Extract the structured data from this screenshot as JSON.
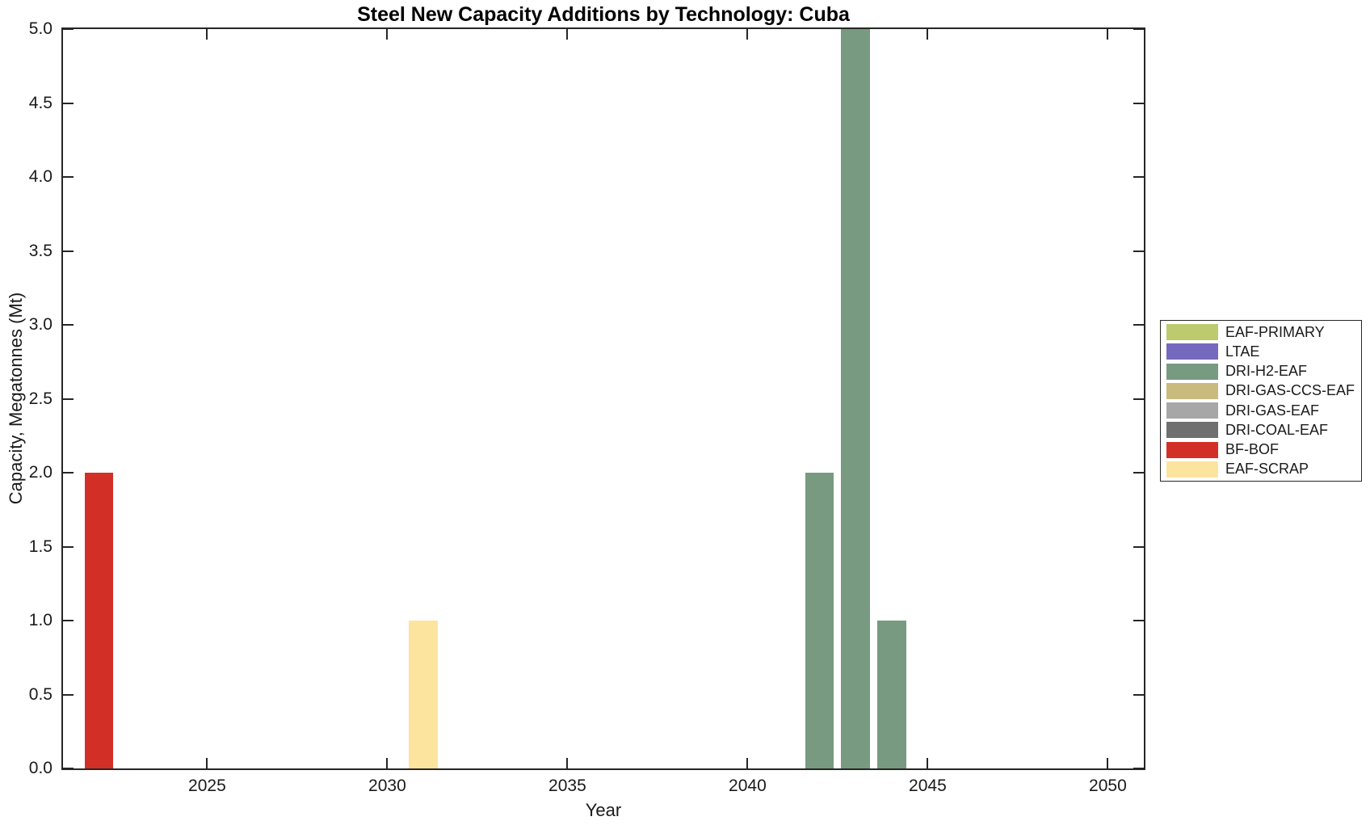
{
  "chart_data": {
    "type": "bar",
    "title": "Steel New Capacity Additions by Technology: Cuba",
    "xlabel": "Year",
    "ylabel": "Capacity, Megatonnes (Mt)",
    "xlim": [
      2021,
      2051
    ],
    "ylim": [
      0,
      5
    ],
    "xticks": [
      2025,
      2030,
      2035,
      2040,
      2045,
      2050
    ],
    "yticks": [
      0.0,
      0.5,
      1.0,
      1.5,
      2.0,
      2.5,
      3.0,
      3.5,
      4.0,
      4.5,
      5.0
    ],
    "grid": false,
    "bar_width_years": 0.8,
    "legend_position": "right-outside",
    "frame_color": "#262626",
    "series": [
      {
        "name": "EAF-PRIMARY",
        "color": "#bdca6e",
        "points": []
      },
      {
        "name": "LTAE",
        "color": "#7569be",
        "points": []
      },
      {
        "name": "DRI-H2-EAF",
        "color": "#779a80",
        "points": [
          {
            "x": 2042,
            "y": 2.0
          },
          {
            "x": 2043,
            "y": 5.0
          },
          {
            "x": 2044,
            "y": 1.0
          }
        ]
      },
      {
        "name": "DRI-GAS-CCS-EAF",
        "color": "#c8bb7d",
        "points": []
      },
      {
        "name": "DRI-GAS-EAF",
        "color": "#a7a7a7",
        "points": []
      },
      {
        "name": "DRI-COAL-EAF",
        "color": "#6f6f6f",
        "points": []
      },
      {
        "name": "BF-BOF",
        "color": "#d23027",
        "points": [
          {
            "x": 2022,
            "y": 2.0
          }
        ]
      },
      {
        "name": "EAF-SCRAP",
        "color": "#fde49e",
        "points": [
          {
            "x": 2031,
            "y": 1.0
          }
        ]
      }
    ]
  }
}
